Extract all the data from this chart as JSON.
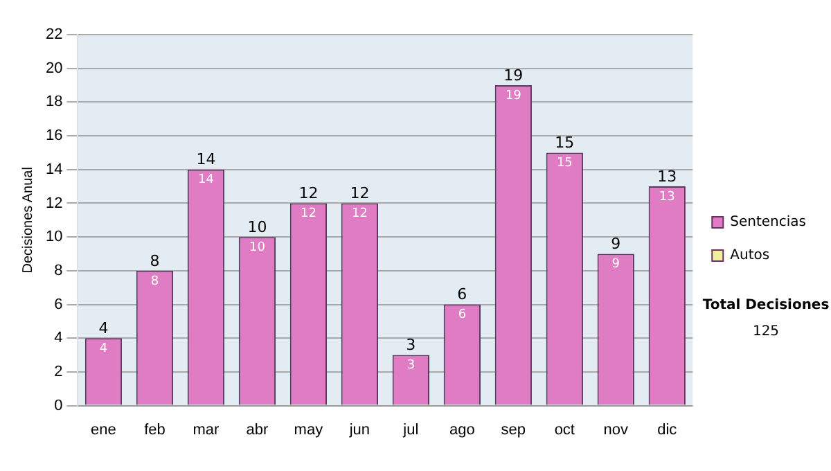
{
  "chart_data": {
    "type": "bar",
    "ylabel": "Decisiones Anual",
    "categories": [
      "ene",
      "feb",
      "mar",
      "abr",
      "may",
      "jun",
      "jul",
      "ago",
      "sep",
      "oct",
      "nov",
      "dic"
    ],
    "series": [
      {
        "name": "Sentencias",
        "color": "#e07cc4",
        "values": [
          4,
          8,
          14,
          10,
          12,
          12,
          3,
          6,
          19,
          15,
          9,
          13
        ]
      },
      {
        "name": "Autos",
        "color": "#eef0a0",
        "values": [
          null,
          null,
          null,
          null,
          null,
          null,
          null,
          null,
          null,
          null,
          null,
          null
        ]
      }
    ],
    "stacked": true,
    "data_labels": true,
    "totals": [
      "4",
      "8",
      "14",
      "10",
      "12",
      "12",
      "3",
      "6",
      "19",
      "15",
      "9",
      "13"
    ],
    "ylim": [
      0,
      22
    ],
    "yticks": [
      0,
      2,
      4,
      6,
      8,
      10,
      12,
      14,
      16,
      18,
      20,
      22
    ],
    "grid": "y",
    "legend": "right",
    "annotations": [
      "Total Decisiones",
      "125"
    ]
  }
}
